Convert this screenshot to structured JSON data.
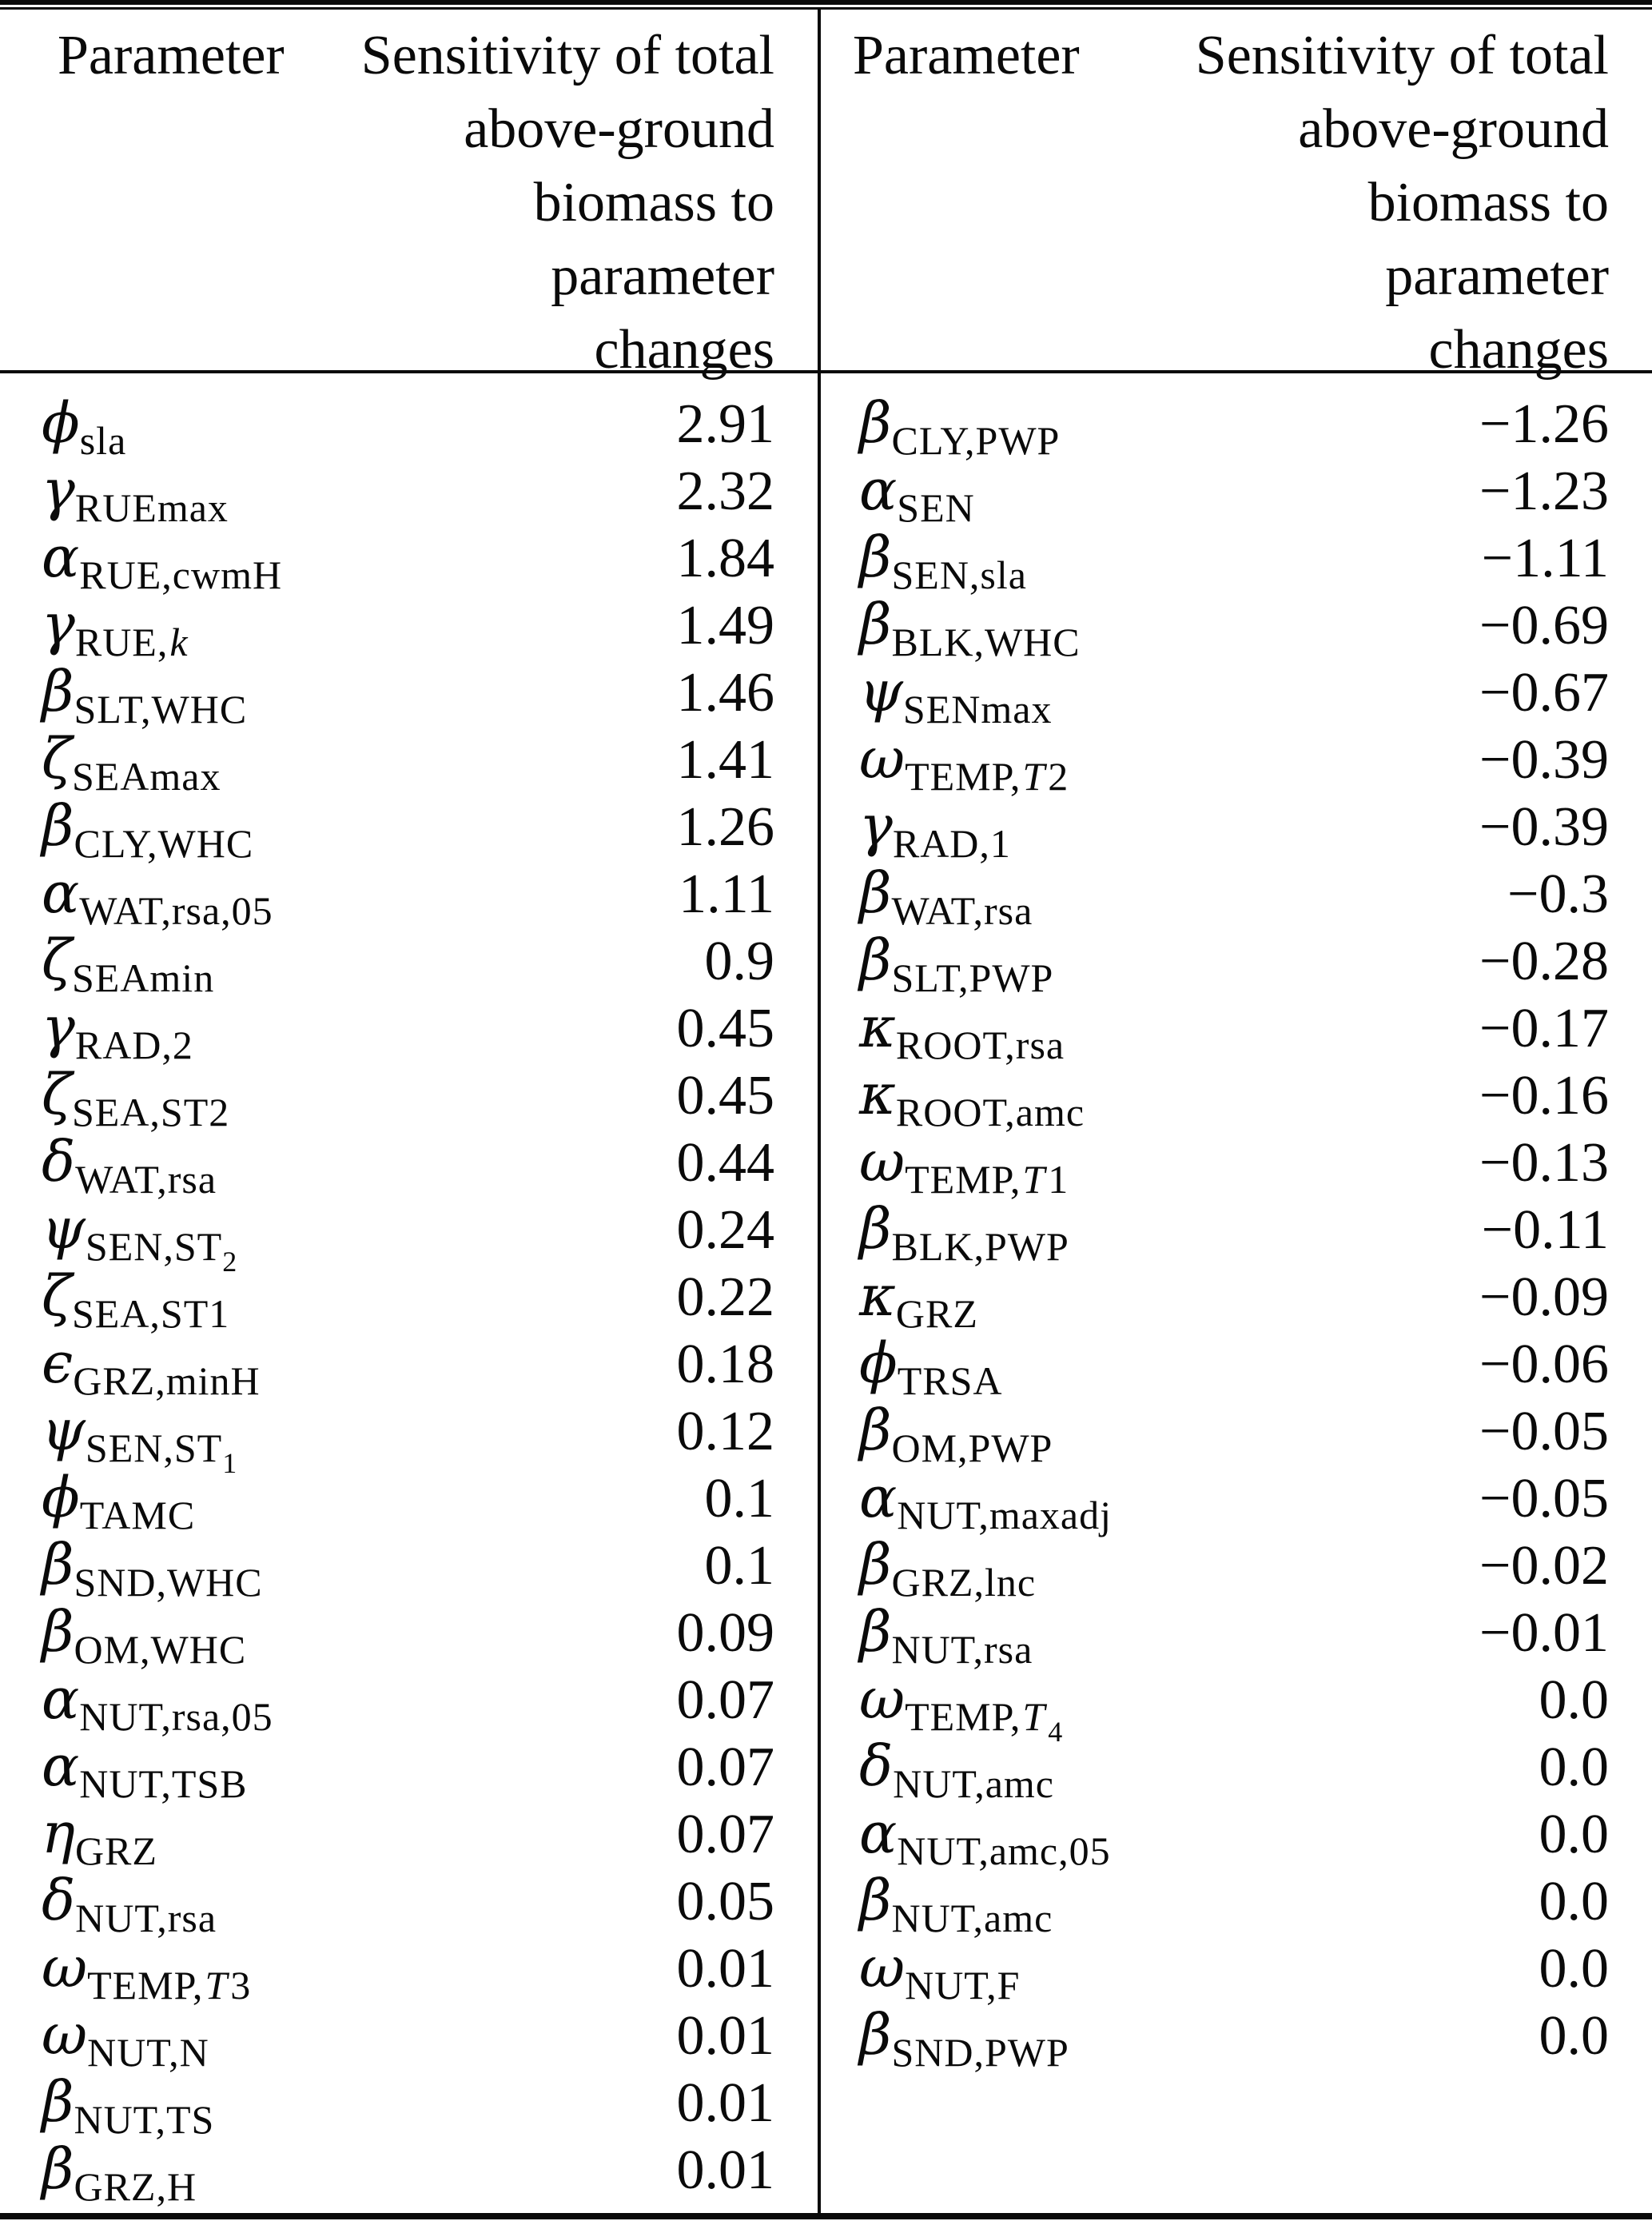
{
  "header": {
    "param_label": "Parameter",
    "value_label": "Sensitivity of total\nabove-ground\nbiomass to\nparameter\nchanges"
  },
  "table": {
    "left_rows": [
      {
        "param": [
          [
            "b",
            "ϕ"
          ],
          [
            "s",
            "sla"
          ]
        ],
        "value": "2.91"
      },
      {
        "param": [
          [
            "b",
            "γ"
          ],
          [
            "s",
            "RUEmax"
          ]
        ],
        "value": "2.32"
      },
      {
        "param": [
          [
            "b",
            "α"
          ],
          [
            "s",
            "RUE,cwmH"
          ]
        ],
        "value": "1.84"
      },
      {
        "param": [
          [
            "b",
            "γ"
          ],
          [
            "s",
            "RUE,"
          ],
          [
            "si",
            "k"
          ]
        ],
        "value": "1.49"
      },
      {
        "param": [
          [
            "b",
            "β"
          ],
          [
            "s",
            "SLT,WHC"
          ]
        ],
        "value": "1.46"
      },
      {
        "param": [
          [
            "b",
            "ζ"
          ],
          [
            "s",
            "SEAmax"
          ]
        ],
        "value": "1.41"
      },
      {
        "param": [
          [
            "b",
            "β"
          ],
          [
            "s",
            "CLY,WHC"
          ]
        ],
        "value": "1.26"
      },
      {
        "param": [
          [
            "b",
            "α"
          ],
          [
            "s",
            "WAT,rsa,05"
          ]
        ],
        "value": "1.11"
      },
      {
        "param": [
          [
            "b",
            "ζ"
          ],
          [
            "s",
            "SEAmin"
          ]
        ],
        "value": "0.9"
      },
      {
        "param": [
          [
            "b",
            "γ"
          ],
          [
            "s",
            "RAD,2"
          ]
        ],
        "value": "0.45"
      },
      {
        "param": [
          [
            "b",
            "ζ"
          ],
          [
            "s",
            "SEA,ST2"
          ]
        ],
        "value": "0.45"
      },
      {
        "param": [
          [
            "b",
            "δ"
          ],
          [
            "s",
            "WAT,rsa"
          ]
        ],
        "value": "0.44"
      },
      {
        "param": [
          [
            "b",
            "ψ"
          ],
          [
            "s",
            "SEN,ST"
          ],
          [
            "ss",
            "2"
          ]
        ],
        "value": "0.24"
      },
      {
        "param": [
          [
            "b",
            "ζ"
          ],
          [
            "s",
            "SEA,ST1"
          ]
        ],
        "value": "0.22"
      },
      {
        "param": [
          [
            "b",
            "ϵ"
          ],
          [
            "s",
            "GRZ,minH"
          ]
        ],
        "value": "0.18"
      },
      {
        "param": [
          [
            "b",
            "ψ"
          ],
          [
            "s",
            "SEN,ST"
          ],
          [
            "ss",
            "1"
          ]
        ],
        "value": "0.12"
      },
      {
        "param": [
          [
            "b",
            "ϕ"
          ],
          [
            "s",
            "TAMC"
          ]
        ],
        "value": "0.1"
      },
      {
        "param": [
          [
            "b",
            "β"
          ],
          [
            "s",
            "SND,WHC"
          ]
        ],
        "value": "0.1"
      },
      {
        "param": [
          [
            "b",
            "β"
          ],
          [
            "s",
            "OM,WHC"
          ]
        ],
        "value": "0.09"
      },
      {
        "param": [
          [
            "b",
            "α"
          ],
          [
            "s",
            "NUT,rsa,05"
          ]
        ],
        "value": "0.07"
      },
      {
        "param": [
          [
            "b",
            "α"
          ],
          [
            "s",
            "NUT,TSB"
          ]
        ],
        "value": "0.07"
      },
      {
        "param": [
          [
            "b",
            "η"
          ],
          [
            "s",
            "GRZ"
          ]
        ],
        "value": "0.07"
      },
      {
        "param": [
          [
            "b",
            "δ"
          ],
          [
            "s",
            "NUT,rsa"
          ]
        ],
        "value": "0.05"
      },
      {
        "param": [
          [
            "b",
            "ω"
          ],
          [
            "s",
            "TEMP,"
          ],
          [
            "si",
            "T"
          ],
          [
            "s",
            "3"
          ]
        ],
        "value": "0.01"
      },
      {
        "param": [
          [
            "b",
            "ω"
          ],
          [
            "s",
            "NUT,N"
          ]
        ],
        "value": "0.01"
      },
      {
        "param": [
          [
            "b",
            "β"
          ],
          [
            "s",
            "NUT,TS"
          ]
        ],
        "value": "0.01"
      },
      {
        "param": [
          [
            "b",
            "β"
          ],
          [
            "s",
            "GRZ,H"
          ]
        ],
        "value": "0.01"
      }
    ],
    "right_rows": [
      {
        "param": [
          [
            "b",
            "β"
          ],
          [
            "s",
            "CLY,PWP"
          ]
        ],
        "value": "−1.26"
      },
      {
        "param": [
          [
            "b",
            "α"
          ],
          [
            "s",
            "SEN"
          ]
        ],
        "value": "−1.23"
      },
      {
        "param": [
          [
            "b",
            "β"
          ],
          [
            "s",
            "SEN,sla"
          ]
        ],
        "value": "−1.11"
      },
      {
        "param": [
          [
            "b",
            "β"
          ],
          [
            "s",
            "BLK,WHC"
          ]
        ],
        "value": "−0.69"
      },
      {
        "param": [
          [
            "b",
            "ψ"
          ],
          [
            "s",
            "SENmax"
          ]
        ],
        "value": "−0.67"
      },
      {
        "param": [
          [
            "b",
            "ω"
          ],
          [
            "s",
            "TEMP,"
          ],
          [
            "si",
            "T"
          ],
          [
            "s",
            "2"
          ]
        ],
        "value": "−0.39"
      },
      {
        "param": [
          [
            "b",
            "γ"
          ],
          [
            "s",
            "RAD,1"
          ]
        ],
        "value": "−0.39"
      },
      {
        "param": [
          [
            "b",
            "β"
          ],
          [
            "s",
            "WAT,rsa"
          ]
        ],
        "value": "−0.3"
      },
      {
        "param": [
          [
            "b",
            "β"
          ],
          [
            "s",
            "SLT,PWP"
          ]
        ],
        "value": "−0.28"
      },
      {
        "param": [
          [
            "b",
            "κ"
          ],
          [
            "s",
            "ROOT,rsa"
          ]
        ],
        "value": "−0.17"
      },
      {
        "param": [
          [
            "b",
            "κ"
          ],
          [
            "s",
            "ROOT,amc"
          ]
        ],
        "value": "−0.16"
      },
      {
        "param": [
          [
            "b",
            "ω"
          ],
          [
            "s",
            "TEMP,"
          ],
          [
            "si",
            "T"
          ],
          [
            "s",
            "1"
          ]
        ],
        "value": "−0.13"
      },
      {
        "param": [
          [
            "b",
            "β"
          ],
          [
            "s",
            "BLK,PWP"
          ]
        ],
        "value": "−0.11"
      },
      {
        "param": [
          [
            "b",
            "κ"
          ],
          [
            "s",
            "GRZ"
          ]
        ],
        "value": "−0.09"
      },
      {
        "param": [
          [
            "b",
            "ϕ"
          ],
          [
            "s",
            "TRSA"
          ]
        ],
        "value": "−0.06"
      },
      {
        "param": [
          [
            "b",
            "β"
          ],
          [
            "s",
            "OM,PWP"
          ]
        ],
        "value": "−0.05"
      },
      {
        "param": [
          [
            "b",
            "α"
          ],
          [
            "s",
            "NUT,maxadj"
          ]
        ],
        "value": "−0.05"
      },
      {
        "param": [
          [
            "b",
            "β"
          ],
          [
            "s",
            "GRZ,lnc"
          ]
        ],
        "value": "−0.02"
      },
      {
        "param": [
          [
            "b",
            "β"
          ],
          [
            "s",
            "NUT,rsa"
          ]
        ],
        "value": "−0.01"
      },
      {
        "param": [
          [
            "b",
            "ω"
          ],
          [
            "s",
            "TEMP,"
          ],
          [
            "si",
            "T"
          ],
          [
            "ss",
            "4"
          ]
        ],
        "value": "0.0"
      },
      {
        "param": [
          [
            "b",
            "δ"
          ],
          [
            "s",
            "NUT,amc"
          ]
        ],
        "value": "0.0"
      },
      {
        "param": [
          [
            "b",
            "α"
          ],
          [
            "s",
            "NUT,amc,05"
          ]
        ],
        "value": "0.0"
      },
      {
        "param": [
          [
            "b",
            "β"
          ],
          [
            "s",
            "NUT,amc"
          ]
        ],
        "value": "0.0"
      },
      {
        "param": [
          [
            "b",
            "ω"
          ],
          [
            "s",
            "NUT,F"
          ]
        ],
        "value": "0.0"
      },
      {
        "param": [
          [
            "b",
            "β"
          ],
          [
            "s",
            "SND,PWP"
          ]
        ],
        "value": "0.0"
      }
    ]
  }
}
